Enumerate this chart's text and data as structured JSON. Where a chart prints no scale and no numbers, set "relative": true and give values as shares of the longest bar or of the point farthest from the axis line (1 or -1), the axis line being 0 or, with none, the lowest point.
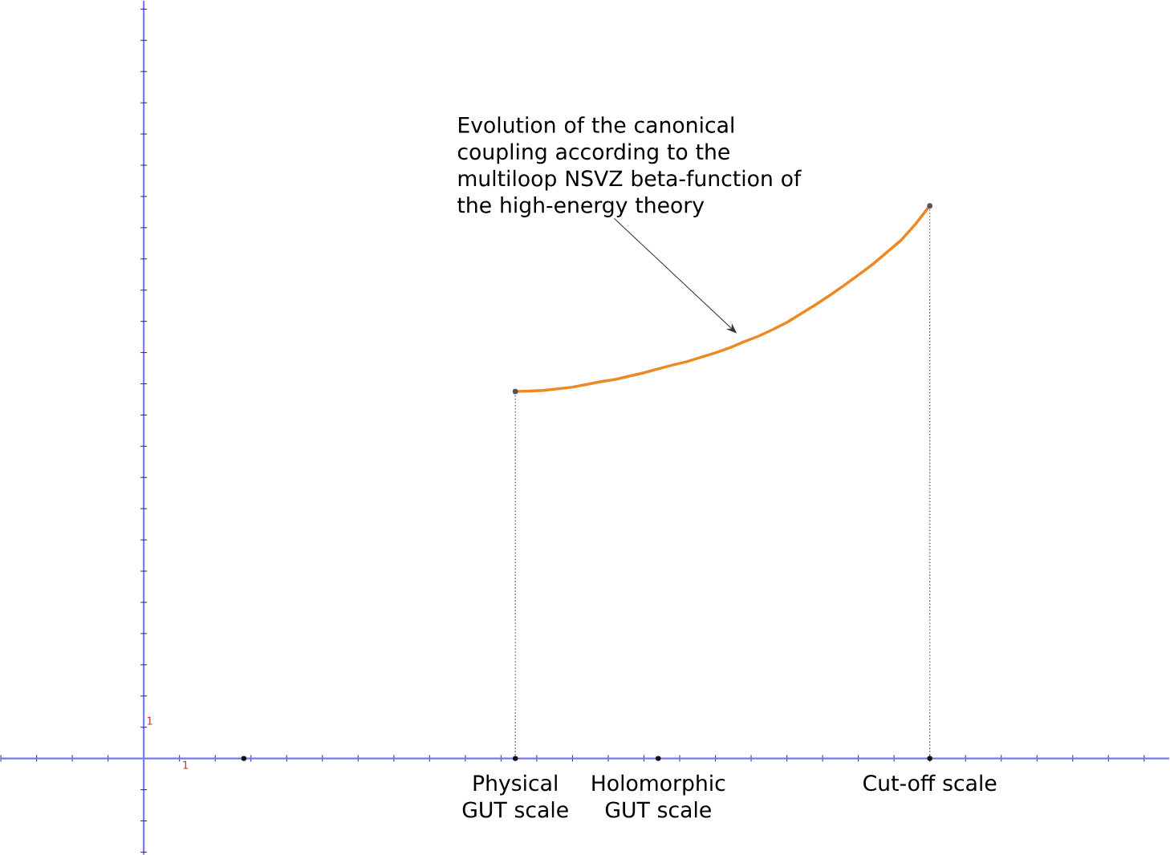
{
  "chart_data": {
    "type": "line",
    "relative": true,
    "categories": [
      null,
      null,
      null,
      null,
      null,
      null,
      null,
      null,
      null,
      null,
      null,
      null,
      null,
      null,
      null,
      null,
      null,
      null,
      null,
      "Physical GUT scale",
      null,
      null,
      null,
      null,
      null,
      null,
      null,
      null,
      null,
      "Holomorphic GUT scale",
      null,
      null,
      null,
      null,
      null,
      null,
      null,
      null,
      null,
      null,
      null,
      null,
      null,
      null,
      null,
      null,
      null,
      null,
      "Cut-off scale"
    ],
    "marker": "none",
    "series": [
      {
        "color": "#ee8822",
        "values": [
          null,
          null,
          null,
          null,
          null,
          null,
          null,
          null,
          null,
          null,
          null,
          null,
          null,
          null,
          null,
          null,
          null,
          null,
          null,
          0.664,
          0.665,
          0.666,
          0.669,
          0.672,
          0.677,
          0.682,
          0.686,
          0.692,
          0.698,
          0.705,
          0.712,
          0.718,
          0.726,
          0.734,
          0.743,
          0.754,
          0.764,
          0.776,
          0.789,
          0.805,
          0.821,
          0.838,
          0.856,
          0.875,
          0.894,
          0.916,
          0.938,
          0.967,
          1.0
        ]
      },
      {
        "type": "lollipop",
        "line_style": "dotted",
        "marker": "circle",
        "color": "#555555",
        "values": [
          null,
          null,
          null,
          null,
          null,
          null,
          null,
          null,
          null,
          null,
          null,
          null,
          null,
          null,
          null,
          null,
          null,
          null,
          null,
          0.664,
          null,
          null,
          null,
          null,
          null,
          null,
          null,
          null,
          null,
          null,
          null,
          null,
          null,
          null,
          null,
          null,
          null,
          null,
          null,
          null,
          null,
          null,
          null,
          null,
          null,
          null,
          null,
          null,
          1.0
        ]
      },
      {
        "type": "scatter",
        "marker": "circle",
        "color": "#111111",
        "values": [
          0,
          null,
          null,
          null,
          null,
          null,
          null,
          null,
          null,
          null,
          null,
          null,
          null,
          null,
          null,
          null,
          null,
          null,
          null,
          0,
          null,
          null,
          null,
          null,
          null,
          null,
          null,
          null,
          null,
          0,
          null,
          null,
          null,
          null,
          null,
          null,
          null,
          null,
          null,
          null,
          null,
          null,
          null,
          null,
          null,
          null,
          null,
          null,
          0
        ]
      }
    ],
    "annotations": [
      "Evolution of the canonical coupling according to the multiloop NSVZ beta-function of the high-energy theory",
      "1",
      "1"
    ]
  }
}
